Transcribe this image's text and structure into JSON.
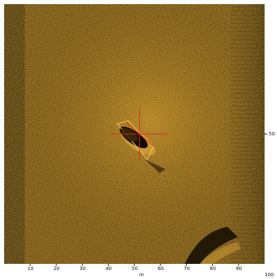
{
  "viewer": {
    "colors": {
      "background": "#ffffff",
      "seabed": "#6b4a0c",
      "seabed_bright": "#c8921e",
      "frame": "#000000",
      "crosshair": "#e0281e",
      "label_text": "#111111"
    },
    "x_axis": {
      "tick_labels": [
        "10",
        "20",
        "30",
        "40",
        "50",
        "60",
        "70",
        "80",
        "90"
      ],
      "end_label": "100",
      "unit": "m"
    },
    "y_axis": {
      "tick_labels": [
        "50"
      ]
    },
    "target": {
      "icon": "crosshair-icon",
      "x": 52,
      "y": 50
    }
  }
}
